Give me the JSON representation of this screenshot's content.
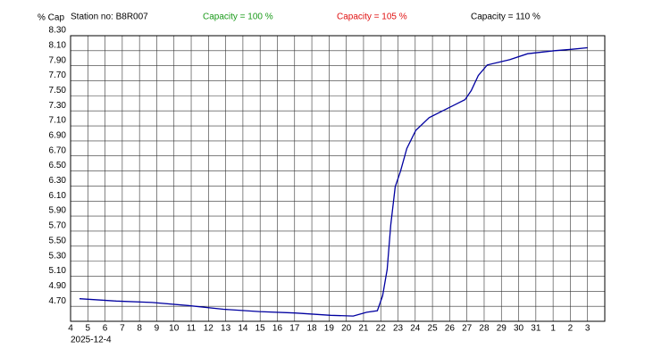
{
  "chart_data": {
    "type": "line",
    "ylabel": "% Cap",
    "annotations": [
      {
        "text": "Station no: B8R007",
        "color": "#000000"
      },
      {
        "text": "Capacity = 100 %",
        "color": "#1a9a1a"
      },
      {
        "text": "Capacity = 105 %",
        "color": "#e01010"
      },
      {
        "text": "Capacity = 110 %",
        "color": "#000000"
      }
    ],
    "xlabel": "2025-12-4",
    "x": [
      0.52,
      2.65,
      4.72,
      6.8,
      8.87,
      10.95,
      13.03,
      15.1,
      16.4,
      17.18,
      17.8,
      18.11,
      18.37,
      18.58,
      18.84,
      19.15,
      19.51,
      20.03,
      20.81,
      21.85,
      22.89,
      23.25,
      23.66,
      24.18,
      25.48,
      26.52,
      28.07,
      29.11,
      29.99
    ],
    "series": [
      {
        "color": "#0000a0",
        "values": [
          4.8,
          4.77,
          4.75,
          4.71,
          4.66,
          4.63,
          4.61,
          4.58,
          4.57,
          4.62,
          4.64,
          4.84,
          5.19,
          5.78,
          6.29,
          6.5,
          6.8,
          7.04,
          7.21,
          7.33,
          7.45,
          7.57,
          7.77,
          7.91,
          7.98,
          8.06,
          8.1,
          8.12,
          8.14
        ]
      }
    ],
    "xlim": [
      0,
      31
    ],
    "xticks": [
      {
        "value": 0,
        "label": "4"
      },
      {
        "value": 1,
        "label": "5"
      },
      {
        "value": 2,
        "label": "6"
      },
      {
        "value": 3,
        "label": "7"
      },
      {
        "value": 4,
        "label": "8"
      },
      {
        "value": 5,
        "label": "9"
      },
      {
        "value": 6,
        "label": "10"
      },
      {
        "value": 7,
        "label": "11"
      },
      {
        "value": 8,
        "label": "12"
      },
      {
        "value": 9,
        "label": "13"
      },
      {
        "value": 10,
        "label": "14"
      },
      {
        "value": 11,
        "label": "15"
      },
      {
        "value": 12,
        "label": "16"
      },
      {
        "value": 13,
        "label": "17"
      },
      {
        "value": 14,
        "label": "18"
      },
      {
        "value": 15,
        "label": "19"
      },
      {
        "value": 16,
        "label": "20"
      },
      {
        "value": 17,
        "label": "21"
      },
      {
        "value": 18,
        "label": "22"
      },
      {
        "value": 19,
        "label": "23"
      },
      {
        "value": 20,
        "label": "24"
      },
      {
        "value": 21,
        "label": "25"
      },
      {
        "value": 22,
        "label": "26"
      },
      {
        "value": 23,
        "label": "27"
      },
      {
        "value": 24,
        "label": "28"
      },
      {
        "value": 25,
        "label": "29"
      },
      {
        "value": 26,
        "label": "30"
      },
      {
        "value": 27,
        "label": "31"
      },
      {
        "value": 28,
        "label": "1"
      },
      {
        "value": 29,
        "label": "2"
      },
      {
        "value": 30,
        "label": "3"
      }
    ],
    "ylim": [
      4.5,
      8.3
    ],
    "yticks": [
      {
        "value": 4.7,
        "label": "4.70"
      },
      {
        "value": 4.9,
        "label": "4.90"
      },
      {
        "value": 5.1,
        "label": "5.10"
      },
      {
        "value": 5.3,
        "label": "5.30"
      },
      {
        "value": 5.5,
        "label": "5.50"
      },
      {
        "value": 5.7,
        "label": "5.70"
      },
      {
        "value": 5.9,
        "label": "5.90"
      },
      {
        "value": 6.1,
        "label": "6.10"
      },
      {
        "value": 6.3,
        "label": "6.30"
      },
      {
        "value": 6.5,
        "label": "6.50"
      },
      {
        "value": 6.7,
        "label": "6.70"
      },
      {
        "value": 6.9,
        "label": "6.90"
      },
      {
        "value": 7.1,
        "label": "7.10"
      },
      {
        "value": 7.3,
        "label": "7.30"
      },
      {
        "value": 7.5,
        "label": "7.50"
      },
      {
        "value": 7.7,
        "label": "7.70"
      },
      {
        "value": 7.9,
        "label": "7.90"
      },
      {
        "value": 8.1,
        "label": "8.10"
      },
      {
        "value": 8.3,
        "label": "8.30"
      }
    ],
    "grid": true
  }
}
